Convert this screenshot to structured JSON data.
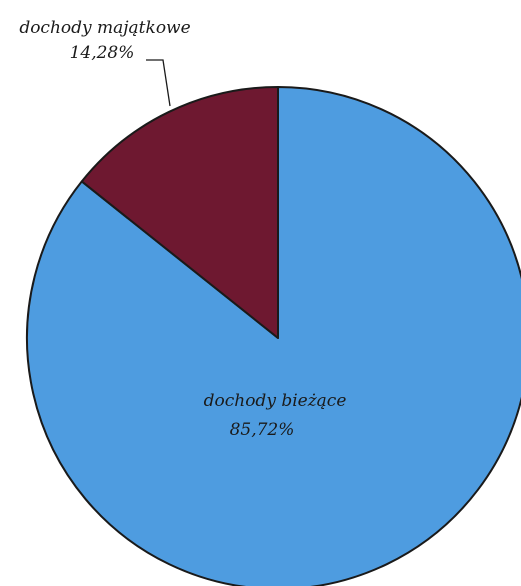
{
  "chart_data": {
    "type": "pie",
    "slices": [
      {
        "name": "dochody bieżące",
        "value": 85.72,
        "value_label": "85,72%",
        "color": "#4e9ce0"
      },
      {
        "name": "dochody majątkowe",
        "value": 14.28,
        "value_label": "14,28%",
        "color": "#6e1830"
      }
    ],
    "start_angle_deg": 0,
    "direction": "clockwise",
    "slice_edge_color": "#1a1a1a"
  }
}
